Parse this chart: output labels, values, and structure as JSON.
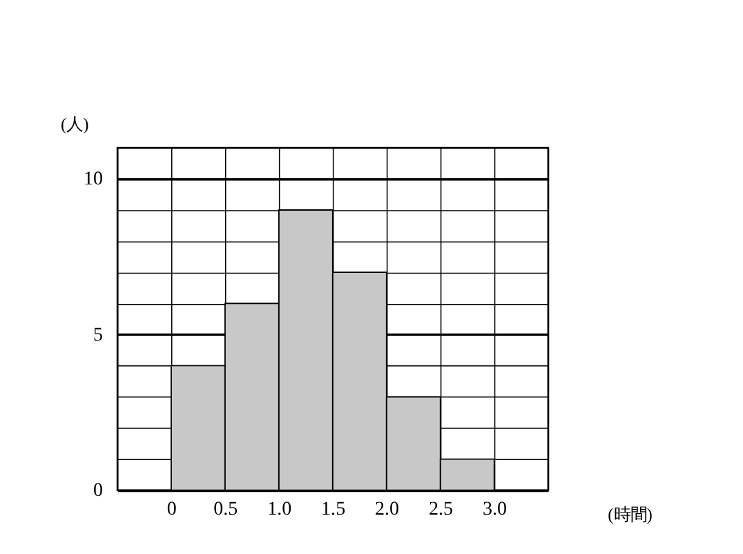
{
  "chart_data": {
    "type": "histogram",
    "xlabel": "(時間)",
    "ylabel": "(人)",
    "bins": [
      0,
      0.5,
      1.0,
      1.5,
      2.0,
      2.5,
      3.0
    ],
    "values": [
      4,
      6,
      9,
      7,
      3,
      1
    ],
    "color": "#c8c8c8",
    "xlim": [
      -0.5,
      3.5
    ],
    "ylim": [
      0,
      11
    ],
    "xticks": [
      {
        "value": -0.5,
        "label": null
      },
      0,
      0.5,
      {
        "value": 1,
        "label": "1.0"
      },
      1.5,
      {
        "value": 2,
        "label": "2.0"
      },
      2.5,
      {
        "value": 3,
        "label": "3.0"
      },
      {
        "value": 3.5,
        "label": null
      }
    ],
    "yticks": [
      0,
      {
        "value": 1,
        "label": null
      },
      {
        "value": 2,
        "label": null
      },
      {
        "value": 3,
        "label": null
      },
      {
        "value": 4,
        "label": null
      },
      5,
      {
        "value": 6,
        "label": null
      },
      {
        "value": 7,
        "label": null
      },
      {
        "value": 8,
        "label": null
      },
      {
        "value": 9,
        "label": null
      },
      10,
      {
        "value": 11,
        "label": null
      }
    ],
    "grid": true
  }
}
